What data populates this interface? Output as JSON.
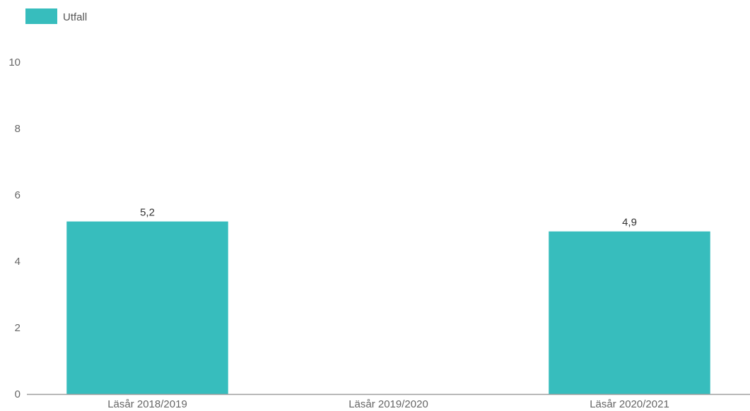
{
  "chart_data": {
    "type": "bar",
    "categories": [
      "Läsår 2018/2019",
      "Läsår 2019/2020",
      "Läsår 2020/2021"
    ],
    "series": [
      {
        "name": "Utfall",
        "values": [
          5.2,
          null,
          4.9
        ],
        "value_labels": [
          "5,2",
          "",
          "4,9"
        ]
      }
    ],
    "ylim": [
      0,
      10
    ],
    "y_ticks": [
      "0",
      "2",
      "4",
      "6",
      "8",
      "10"
    ],
    "grid": false,
    "legend": "top-left",
    "colors": {
      "bar": "#37BDBD",
      "axis": "#9E9E9E"
    }
  }
}
